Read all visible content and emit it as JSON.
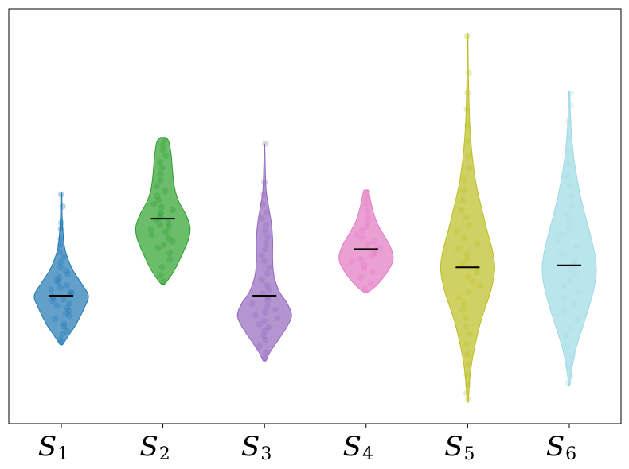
{
  "chart_data": {
    "type": "violin",
    "title": "",
    "xlabel": "",
    "ylabel": "",
    "y_ticks_shown": false,
    "ylim": [
      0,
      100
    ],
    "grid": false,
    "legend": "none",
    "categories": [
      {
        "base": "S",
        "sub": "1"
      },
      {
        "base": "S",
        "sub": "2"
      },
      {
        "base": "S",
        "sub": "3"
      },
      {
        "base": "S",
        "sub": "4"
      },
      {
        "base": "S",
        "sub": "5"
      },
      {
        "base": "S",
        "sub": "6"
      }
    ],
    "series": [
      {
        "color": "#1f77b4",
        "min": 18,
        "max": 55,
        "median": 30,
        "density": [
          [
            18,
            0.05
          ],
          [
            20,
            0.25
          ],
          [
            23,
            0.55
          ],
          [
            27,
            0.85
          ],
          [
            30,
            1.0
          ],
          [
            33,
            0.75
          ],
          [
            36,
            0.45
          ],
          [
            39,
            0.25
          ],
          [
            42,
            0.12
          ],
          [
            46,
            0.06
          ],
          [
            50,
            0.03
          ],
          [
            55,
            0.02
          ]
        ],
        "points": [
          18.5,
          19.2,
          20.5,
          21.3,
          22.4,
          23.1,
          24.2,
          25.0,
          25.6,
          26.3,
          27.0,
          27.5,
          28.1,
          28.6,
          29.0,
          29.4,
          29.8,
          30.2,
          30.6,
          31.0,
          31.5,
          32.0,
          32.6,
          33.2,
          33.8,
          34.5,
          35.3,
          36.1,
          37.0,
          38.2,
          39.5,
          40.8,
          42.5,
          44.0,
          46.5,
          48.0,
          52.0,
          55.0
        ]
      },
      {
        "color": "#2ca02c",
        "min": 33,
        "max": 69,
        "median": 49,
        "density": [
          [
            33,
            0.08
          ],
          [
            36,
            0.4
          ],
          [
            40,
            0.7
          ],
          [
            44,
            0.95
          ],
          [
            47,
            1.0
          ],
          [
            50,
            0.85
          ],
          [
            53,
            0.6
          ],
          [
            56,
            0.45
          ],
          [
            59,
            0.38
          ],
          [
            62,
            0.34
          ],
          [
            65,
            0.3
          ],
          [
            68,
            0.22
          ],
          [
            69,
            0.1
          ]
        ],
        "points": [
          33.5,
          35.0,
          37.0,
          39.0,
          40.5,
          41.8,
          42.6,
          43.4,
          44.2,
          45.0,
          45.7,
          46.3,
          47.0,
          47.5,
          48.0,
          48.6,
          49.2,
          49.8,
          50.4,
          51.1,
          51.8,
          52.6,
          53.5,
          54.6,
          55.8,
          57.0,
          58.5,
          60.0,
          61.5,
          63.0,
          64.5,
          66.0,
          67.2,
          68.5
        ]
      },
      {
        "color": "#9467bd",
        "min": 14,
        "max": 67,
        "median": 30,
        "density": [
          [
            14,
            0.05
          ],
          [
            16,
            0.2
          ],
          [
            19,
            0.5
          ],
          [
            22,
            0.8
          ],
          [
            25,
            1.0
          ],
          [
            28,
            0.85
          ],
          [
            31,
            0.55
          ],
          [
            35,
            0.35
          ],
          [
            39,
            0.3
          ],
          [
            44,
            0.3
          ],
          [
            48,
            0.25
          ],
          [
            52,
            0.15
          ],
          [
            56,
            0.06
          ],
          [
            61,
            0.03
          ],
          [
            67,
            0.01
          ]
        ],
        "points": [
          14.5,
          16.0,
          17.5,
          19.0,
          20.2,
          21.3,
          22.2,
          23.0,
          23.8,
          24.5,
          25.2,
          25.9,
          26.6,
          27.3,
          28.0,
          28.8,
          29.6,
          30.5,
          31.5,
          32.6,
          34.0,
          35.5,
          37.0,
          38.5,
          40.0,
          41.5,
          43.0,
          44.5,
          46.0,
          47.5,
          49.0,
          50.5,
          52.5,
          55.0,
          58.0,
          67.5
        ]
      },
      {
        "color": "#e377c2",
        "min": 31,
        "max": 56,
        "median": 41.5,
        "density": [
          [
            31,
            0.1
          ],
          [
            33,
            0.45
          ],
          [
            36,
            0.8
          ],
          [
            39,
            1.0
          ],
          [
            42,
            0.9
          ],
          [
            45,
            0.65
          ],
          [
            48,
            0.4
          ],
          [
            51,
            0.25
          ],
          [
            53,
            0.18
          ],
          [
            55,
            0.12
          ],
          [
            56,
            0.08
          ]
        ],
        "points": [
          31.5,
          33.0,
          34.5,
          35.8,
          36.8,
          37.6,
          38.4,
          39.1,
          39.8,
          40.5,
          41.2,
          41.9,
          42.6,
          43.4,
          44.2,
          45.0,
          46.0,
          47.0,
          48.2,
          49.5,
          51.0,
          52.5,
          54.0,
          55.5
        ]
      },
      {
        "color": "#bcbd22",
        "min": 4,
        "max": 94,
        "median": 37,
        "density": [
          [
            4,
            0.02
          ],
          [
            8,
            0.06
          ],
          [
            13,
            0.14
          ],
          [
            18,
            0.28
          ],
          [
            24,
            0.5
          ],
          [
            30,
            0.8
          ],
          [
            34,
            0.95
          ],
          [
            37,
            1.0
          ],
          [
            41,
            0.92
          ],
          [
            46,
            0.72
          ],
          [
            52,
            0.5
          ],
          [
            58,
            0.3
          ],
          [
            65,
            0.16
          ],
          [
            72,
            0.08
          ],
          [
            80,
            0.04
          ],
          [
            87,
            0.02
          ],
          [
            94,
            0.01
          ]
        ],
        "points": [
          4.5,
          6.0,
          8.0,
          10.5,
          13.0,
          15.5,
          18.0,
          20.5,
          22.5,
          24.5,
          26.5,
          28.0,
          29.5,
          31.0,
          32.3,
          33.5,
          34.6,
          35.7,
          36.8,
          37.9,
          39.0,
          40.2,
          41.5,
          42.8,
          44.2,
          45.8,
          47.5,
          49.3,
          51.2,
          53.5,
          56.0,
          58.5,
          61.5,
          64.5,
          68.0,
          72.0,
          76.0,
          80.0,
          85.0,
          94.0
        ]
      },
      {
        "color": "#9edae5",
        "min": 8,
        "max": 80,
        "median": 37.5,
        "density": [
          [
            8,
            0.02
          ],
          [
            12,
            0.1
          ],
          [
            17,
            0.25
          ],
          [
            22,
            0.48
          ],
          [
            27,
            0.72
          ],
          [
            32,
            0.92
          ],
          [
            36,
            1.0
          ],
          [
            40,
            0.95
          ],
          [
            45,
            0.78
          ],
          [
            50,
            0.58
          ],
          [
            55,
            0.4
          ],
          [
            60,
            0.26
          ],
          [
            65,
            0.15
          ],
          [
            70,
            0.08
          ],
          [
            75,
            0.04
          ],
          [
            80,
            0.02
          ]
        ],
        "points": [
          8.5,
          10.0,
          12.5,
          15.0,
          17.5,
          20.0,
          22.0,
          24.0,
          26.0,
          27.8,
          29.5,
          31.0,
          32.4,
          33.7,
          35.0,
          36.2,
          37.4,
          38.6,
          39.8,
          41.0,
          42.3,
          43.7,
          45.2,
          46.8,
          48.5,
          50.3,
          52.2,
          54.5,
          57.0,
          59.5,
          62.5,
          65.5,
          69.0,
          73.0,
          77.0,
          80.0
        ]
      }
    ]
  }
}
